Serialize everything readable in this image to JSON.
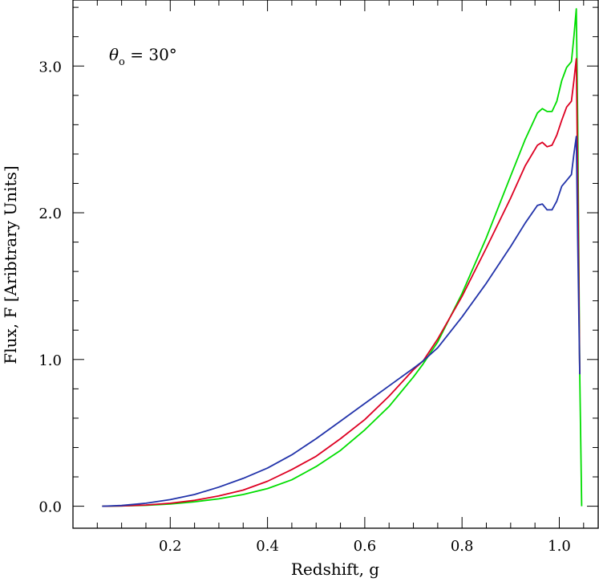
{
  "chart_data": {
    "type": "line",
    "xlabel": "Redshift, g",
    "ylabel": "Flux, F [Aribtrary Units]",
    "xlim": [
      0.0,
      1.08
    ],
    "ylim": [
      -0.15,
      3.45
    ],
    "xticks": [
      "0.2",
      "0.4",
      "0.6",
      "0.8",
      "1.0"
    ],
    "yticks": [
      "0.0",
      "1.0",
      "2.0",
      "3.0"
    ],
    "annotation": {
      "symbol": "θ",
      "subscript": "o",
      "rest": " = 30°"
    },
    "grid": false,
    "series": [
      {
        "color": "#00dd00",
        "x": [
          0.06,
          0.1,
          0.15,
          0.2,
          0.25,
          0.3,
          0.35,
          0.4,
          0.45,
          0.5,
          0.55,
          0.6,
          0.65,
          0.7,
          0.72,
          0.75,
          0.8,
          0.85,
          0.9,
          0.93,
          0.955,
          0.965,
          0.975,
          0.985,
          0.995,
          1.005,
          1.015,
          1.025,
          1.03,
          1.035,
          1.038,
          1.042,
          1.046
        ],
        "y": [
          0.0,
          0.002,
          0.006,
          0.015,
          0.03,
          0.05,
          0.08,
          0.12,
          0.18,
          0.27,
          0.38,
          0.52,
          0.68,
          0.88,
          0.97,
          1.12,
          1.45,
          1.83,
          2.25,
          2.5,
          2.68,
          2.71,
          2.69,
          2.69,
          2.76,
          2.9,
          2.99,
          3.03,
          3.2,
          3.39,
          2.6,
          0.9,
          0.0
        ]
      },
      {
        "color": "#dd0022",
        "x": [
          0.06,
          0.1,
          0.15,
          0.2,
          0.25,
          0.3,
          0.35,
          0.4,
          0.45,
          0.5,
          0.55,
          0.6,
          0.65,
          0.7,
          0.72,
          0.75,
          0.8,
          0.85,
          0.9,
          0.93,
          0.955,
          0.965,
          0.975,
          0.985,
          0.995,
          1.005,
          1.015,
          1.025,
          1.03,
          1.035,
          1.038,
          1.042
        ],
        "y": [
          0.0,
          0.002,
          0.008,
          0.02,
          0.04,
          0.07,
          0.11,
          0.17,
          0.25,
          0.34,
          0.46,
          0.59,
          0.75,
          0.93,
          0.99,
          1.14,
          1.43,
          1.76,
          2.1,
          2.32,
          2.46,
          2.48,
          2.45,
          2.46,
          2.53,
          2.63,
          2.72,
          2.76,
          2.9,
          3.05,
          2.2,
          0.9
        ]
      },
      {
        "color": "#2233aa",
        "x": [
          0.06,
          0.1,
          0.15,
          0.2,
          0.25,
          0.3,
          0.35,
          0.4,
          0.45,
          0.5,
          0.55,
          0.6,
          0.65,
          0.7,
          0.72,
          0.75,
          0.8,
          0.85,
          0.9,
          0.93,
          0.955,
          0.965,
          0.975,
          0.985,
          0.995,
          1.005,
          1.015,
          1.025,
          1.03,
          1.035,
          1.038,
          1.042
        ],
        "y": [
          0.0,
          0.005,
          0.02,
          0.045,
          0.08,
          0.13,
          0.19,
          0.26,
          0.35,
          0.46,
          0.58,
          0.7,
          0.82,
          0.94,
          0.99,
          1.08,
          1.29,
          1.52,
          1.77,
          1.93,
          2.05,
          2.06,
          2.02,
          2.02,
          2.08,
          2.18,
          2.22,
          2.26,
          2.4,
          2.52,
          1.8,
          0.9
        ]
      }
    ]
  }
}
